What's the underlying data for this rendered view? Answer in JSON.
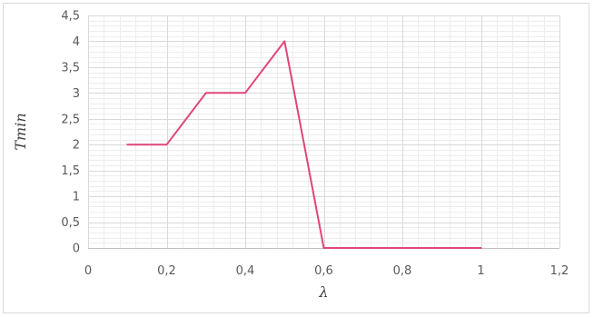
{
  "chart_data": {
    "type": "line",
    "title": "",
    "xlabel": "λ",
    "ylabel": "Tmin",
    "xlim": [
      0,
      1.2
    ],
    "ylim": [
      0,
      4.5
    ],
    "x_ticks": [
      "0",
      "0,2",
      "0,4",
      "0,6",
      "0,8",
      "1",
      "1,2"
    ],
    "y_ticks": [
      "0",
      "0,5",
      "1",
      "1,5",
      "2",
      "2,5",
      "3",
      "3,5",
      "4",
      "4,5"
    ],
    "x_tick_values": [
      0,
      0.2,
      0.4,
      0.6,
      0.8,
      1.0,
      1.2
    ],
    "y_tick_values": [
      0,
      0.5,
      1,
      1.5,
      2,
      2.5,
      3,
      3.5,
      4,
      4.5
    ],
    "grid": true,
    "minor_grid": true,
    "legend": "none",
    "series": [
      {
        "color": "#e0457b",
        "x": [
          0.1,
          0.2,
          0.3,
          0.4,
          0.5,
          0.6,
          0.7,
          0.8,
          0.9,
          1.0
        ],
        "y": [
          2,
          2,
          3,
          3,
          4,
          0,
          0,
          0,
          0,
          0
        ]
      }
    ]
  }
}
